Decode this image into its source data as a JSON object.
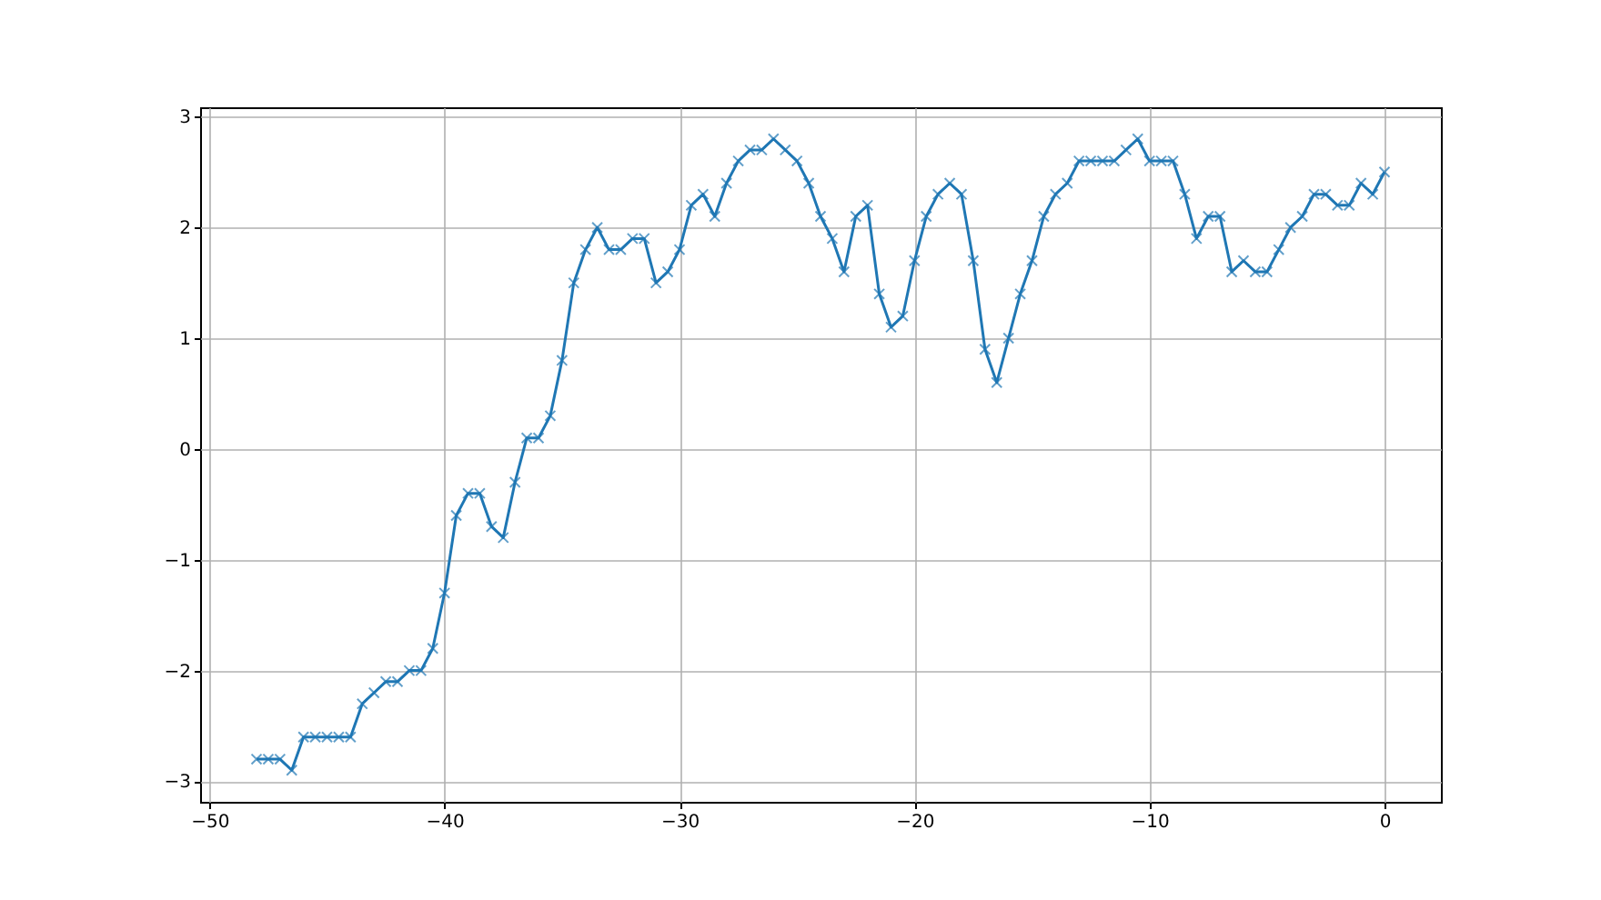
{
  "chart_data": {
    "type": "line",
    "x": [
      -48,
      -47.5,
      -47,
      -46.5,
      -46,
      -45.5,
      -45,
      -44.5,
      -44,
      -43.5,
      -43,
      -42.5,
      -42,
      -41.5,
      -41,
      -40.5,
      -40,
      -39.5,
      -39,
      -38.5,
      -38,
      -37.5,
      -37,
      -36.5,
      -36,
      -35.5,
      -35,
      -34.5,
      -34,
      -33.5,
      -33,
      -32.5,
      -32,
      -31.5,
      -31,
      -30.5,
      -30,
      -29.5,
      -29,
      -28.5,
      -28,
      -27.5,
      -27,
      -26.5,
      -26,
      -25.5,
      -25,
      -24.5,
      -24,
      -23.5,
      -23,
      -22.5,
      -22,
      -21.5,
      -21,
      -20.5,
      -20,
      -19.5,
      -19,
      -18.5,
      -18,
      -17.5,
      -17,
      -16.5,
      -16,
      -15.5,
      -15,
      -14.5,
      -14,
      -13.5,
      -13,
      -12.5,
      -12,
      -11.5,
      -11,
      -10.5,
      -10,
      -9.5,
      -9,
      -8.5,
      -8,
      -7.5,
      -7,
      -6.5,
      -6,
      -5.5,
      -5,
      -4.5,
      -4,
      -3.5,
      -3,
      -2.5,
      -2,
      -1.5,
      -1,
      -0.5,
      0
    ],
    "series": [
      {
        "color": "#1f77b4",
        "values": [
          -2.8,
          -2.8,
          -2.8,
          -2.9,
          -2.6,
          -2.6,
          -2.6,
          -2.6,
          -2.6,
          -2.3,
          -2.2,
          -2.1,
          -2.1,
          -2.0,
          -2.0,
          -1.8,
          -1.3,
          -0.6,
          -0.4,
          -0.4,
          -0.7,
          -0.8,
          -0.3,
          0.1,
          0.1,
          0.3,
          0.8,
          1.5,
          1.8,
          2.0,
          1.8,
          1.8,
          1.9,
          1.9,
          1.5,
          1.6,
          1.8,
          2.2,
          2.3,
          2.1,
          2.4,
          2.6,
          2.7,
          2.7,
          2.8,
          2.7,
          2.6,
          2.4,
          2.1,
          1.9,
          1.6,
          2.1,
          2.2,
          1.4,
          1.1,
          1.2,
          1.7,
          2.1,
          2.3,
          2.4,
          2.3,
          1.7,
          0.9,
          0.6,
          1.0,
          1.4,
          1.7,
          2.1,
          2.3,
          2.4,
          2.6,
          2.6,
          2.6,
          2.6,
          2.7,
          2.8,
          2.6,
          2.6,
          2.6,
          2.3,
          1.9,
          2.1,
          2.1,
          1.6,
          1.7,
          1.6,
          1.6,
          1.8,
          2.0,
          2.1,
          2.3,
          2.3,
          2.2,
          2.2,
          2.4,
          2.3,
          2.5
        ]
      }
    ],
    "xlim": [
      -50.4,
      2.4
    ],
    "ylim": [
      -3.185,
      3.085
    ],
    "xticks": [
      {
        "value": -50,
        "label": "−50"
      },
      {
        "value": -40,
        "label": "−40"
      },
      {
        "value": -30,
        "label": "−30"
      },
      {
        "value": -20,
        "label": "−20"
      },
      {
        "value": -10,
        "label": "−10"
      },
      0
    ],
    "yticks": [
      {
        "value": -3,
        "label": "−3"
      },
      {
        "value": -2,
        "label": "−2"
      },
      {
        "value": -1,
        "label": "−1"
      },
      0,
      1,
      2,
      3
    ],
    "grid": true,
    "marker": "cross",
    "line_style": "solid"
  }
}
